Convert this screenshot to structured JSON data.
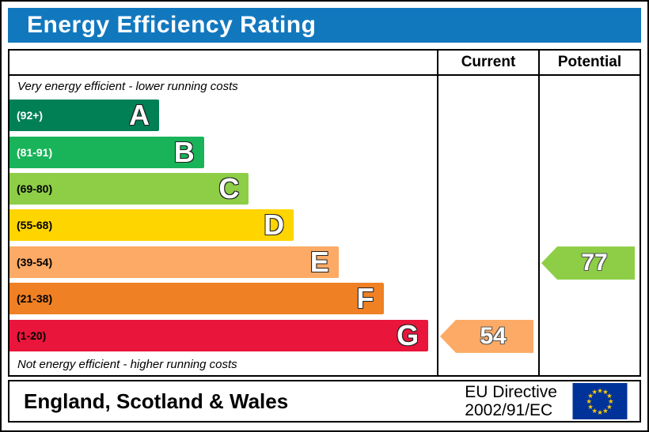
{
  "title": "Energy Efficiency Rating",
  "table": {
    "current_header": "Current",
    "potential_header": "Potential"
  },
  "notes": {
    "top": "Very energy efficient - lower running costs",
    "bottom": "Not energy efficient - higher running costs"
  },
  "footer": {
    "region": "England, Scotland & Wales",
    "directive_line1": "EU Directive",
    "directive_line2": "2002/91/EC"
  },
  "colors": {
    "header_bg": "#1278be",
    "flag_blue": "#003399",
    "flag_stars": "#ffcc00",
    "border": "#000000"
  },
  "chart_data": {
    "type": "bar",
    "title": "Energy Efficiency Rating",
    "orientation": "horizontal",
    "bands": [
      {
        "letter": "A",
        "range_label": "(92+)",
        "min": 92,
        "max": 100,
        "color": "#008054",
        "label_color": "#ffffff",
        "width_pct": 35
      },
      {
        "letter": "B",
        "range_label": "(81-91)",
        "min": 81,
        "max": 91,
        "color": "#19b459",
        "label_color": "#ffffff",
        "width_pct": 45.5
      },
      {
        "letter": "C",
        "range_label": "(69-80)",
        "min": 69,
        "max": 80,
        "color": "#8dce46",
        "label_color": "#000000",
        "width_pct": 56
      },
      {
        "letter": "D",
        "range_label": "(55-68)",
        "min": 55,
        "max": 68,
        "color": "#ffd500",
        "label_color": "#000000",
        "width_pct": 66.5
      },
      {
        "letter": "E",
        "range_label": "(39-54)",
        "min": 39,
        "max": 54,
        "color": "#fcaa65",
        "label_color": "#000000",
        "width_pct": 77
      },
      {
        "letter": "F",
        "range_label": "(21-38)",
        "min": 21,
        "max": 38,
        "color": "#ef8023",
        "label_color": "#000000",
        "width_pct": 87.5
      },
      {
        "letter": "G",
        "range_label": "(1-20)",
        "min": 1,
        "max": 20,
        "color": "#e9153b",
        "label_color": "#000000",
        "width_pct": 98
      }
    ],
    "current": {
      "value": 54,
      "band": "E",
      "color": "#fcaa65"
    },
    "potential": {
      "value": 77,
      "band": "C",
      "color": "#8dce46"
    }
  }
}
